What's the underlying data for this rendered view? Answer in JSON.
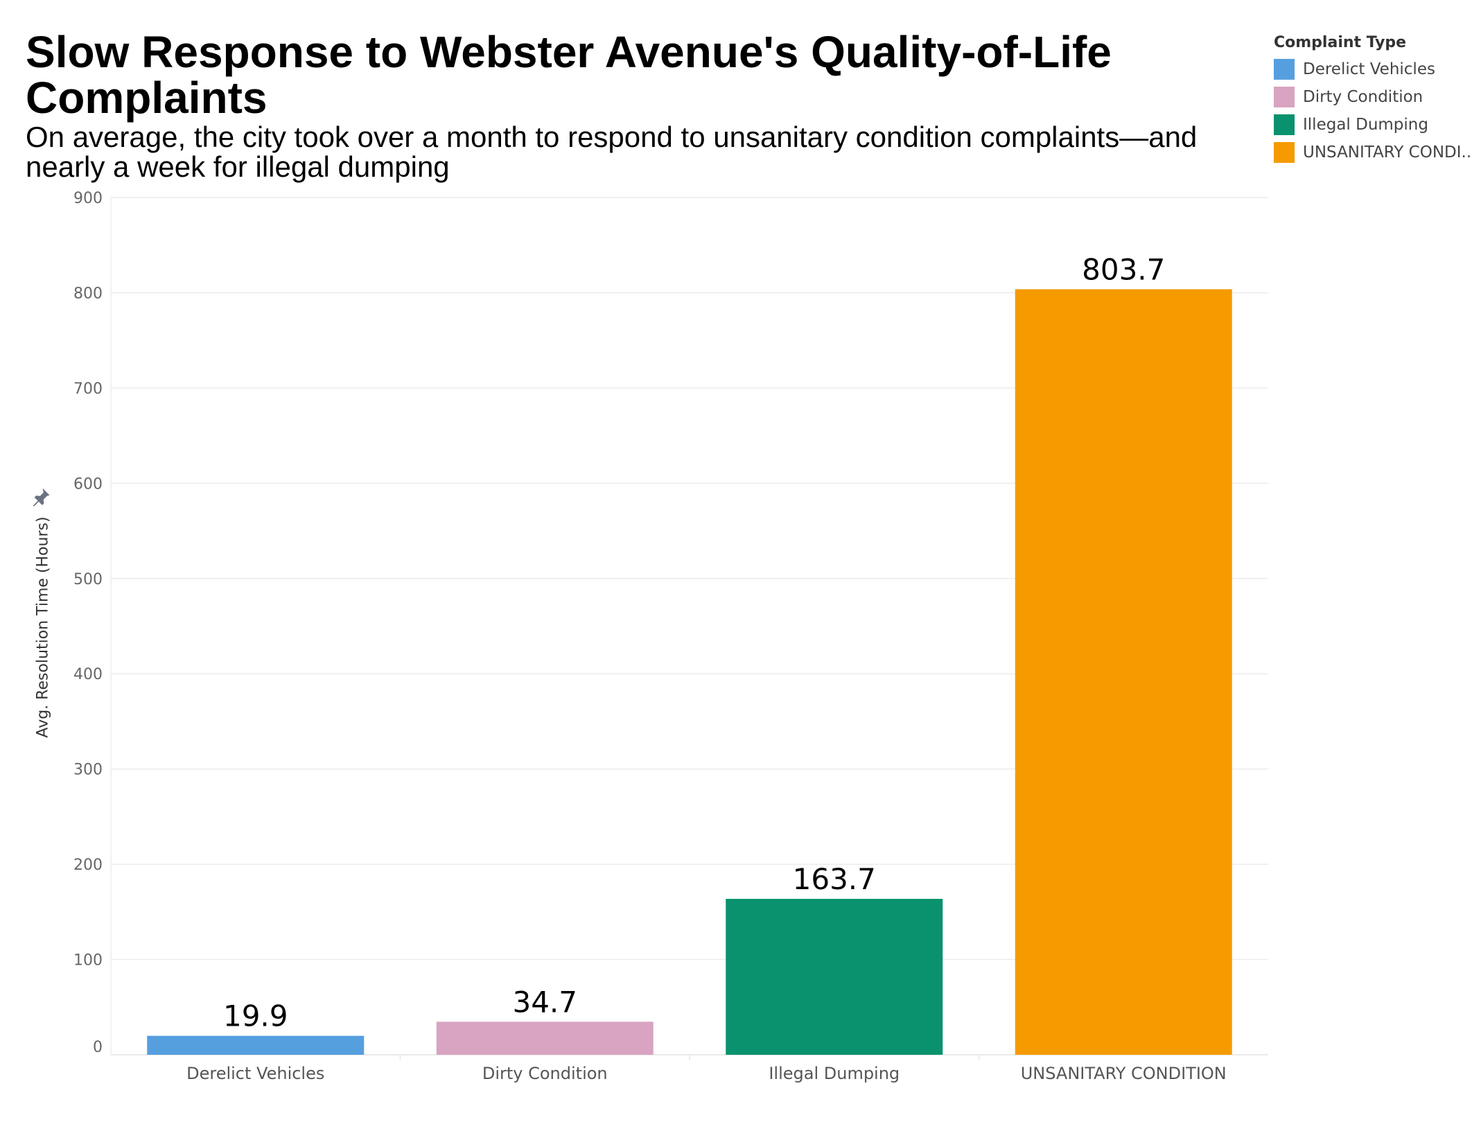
{
  "title": "Slow Response to Webster Avenue's Quality-of-Life Complaints",
  "subtitle": "On average, the city took over a month to respond to unsanitary condition complaints—and nearly a week for illegal dumping",
  "legend": {
    "title": "Complaint Type",
    "items": [
      {
        "label": "Derelict Vehicles",
        "color": "#559fdf"
      },
      {
        "label": "Dirty Condition",
        "color": "#d8a4c1"
      },
      {
        "label": "Illegal Dumping",
        "color": "#09926d"
      },
      {
        "label": "UNSANITARY CONDI..",
        "color": "#f59b00"
      }
    ]
  },
  "chart_data": {
    "type": "bar",
    "categories": [
      "Derelict Vehicles",
      "Dirty Condition",
      "Illegal Dumping",
      "UNSANITARY CONDITION"
    ],
    "values": [
      19.9,
      34.7,
      163.7,
      803.7
    ],
    "value_labels": [
      "19.9",
      "34.7",
      "163.7",
      "803.7"
    ],
    "colors": [
      "#559fdf",
      "#d8a4c1",
      "#09926d",
      "#f59b00"
    ],
    "ylabel": "Avg. Resolution Time (Hours)",
    "xlabel": "",
    "ylim": [
      0,
      900
    ],
    "yticks": [
      0,
      100,
      200,
      300,
      400,
      500,
      600,
      700,
      800,
      900
    ],
    "grid": true
  }
}
